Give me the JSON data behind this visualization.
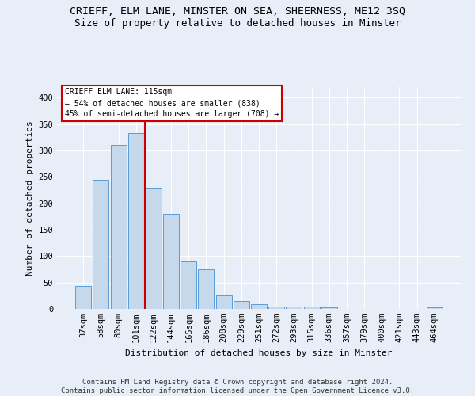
{
  "title": "CRIEFF, ELM LANE, MINSTER ON SEA, SHEERNESS, ME12 3SQ",
  "subtitle": "Size of property relative to detached houses in Minster",
  "xlabel": "Distribution of detached houses by size in Minster",
  "ylabel": "Number of detached properties",
  "categories": [
    "37sqm",
    "58sqm",
    "80sqm",
    "101sqm",
    "122sqm",
    "144sqm",
    "165sqm",
    "186sqm",
    "208sqm",
    "229sqm",
    "251sqm",
    "272sqm",
    "293sqm",
    "315sqm",
    "336sqm",
    "357sqm",
    "379sqm",
    "400sqm",
    "421sqm",
    "443sqm",
    "464sqm"
  ],
  "values": [
    44,
    245,
    310,
    333,
    228,
    180,
    90,
    75,
    25,
    15,
    9,
    5,
    5,
    4,
    3,
    0,
    0,
    0,
    0,
    0,
    3
  ],
  "bar_color": "#c5d8ec",
  "bar_edge_color": "#5b9bd5",
  "vline_color": "#cc0000",
  "vline_x": 3.5,
  "annotation_title": "CRIEFF ELM LANE: 115sqm",
  "annotation_line1": "← 54% of detached houses are smaller (838)",
  "annotation_line2": "45% of semi-detached houses are larger (708) →",
  "annotation_box_fc": "#ffffff",
  "annotation_box_ec": "#cc0000",
  "ylim": [
    0,
    420
  ],
  "yticks": [
    0,
    50,
    100,
    150,
    200,
    250,
    300,
    350,
    400
  ],
  "bg_color": "#e8eef8",
  "grid_color": "#ffffff",
  "footer": "Contains HM Land Registry data © Crown copyright and database right 2024.\nContains public sector information licensed under the Open Government Licence v3.0.",
  "title_fontsize": 9.5,
  "subtitle_fontsize": 9,
  "axis_fontsize": 7.5,
  "ylabel_fontsize": 8,
  "xlabel_fontsize": 8,
  "footer_fontsize": 6.5
}
